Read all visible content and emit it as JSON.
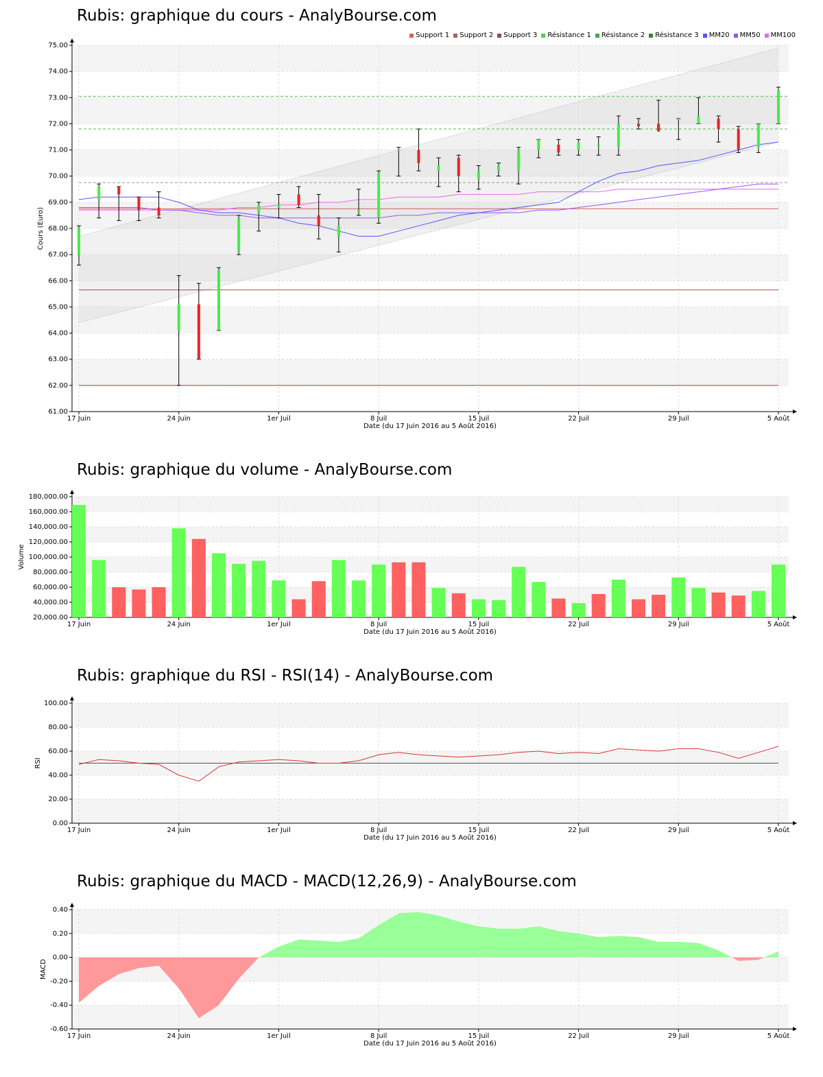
{
  "cours": {
    "title": "Rubis: graphique du cours - AnalyBourse.com",
    "legend": [
      {
        "name": "Support 1",
        "color": "#e06060"
      },
      {
        "name": "Support 2",
        "color": "#b06060"
      },
      {
        "name": "Support 3",
        "color": "#8a5050"
      },
      {
        "name": "Résistance 1",
        "color": "#55cc55"
      },
      {
        "name": "Résistance 2",
        "color": "#44aa44"
      },
      {
        "name": "Résistance 3",
        "color": "#338833"
      },
      {
        "name": "MM20",
        "color": "#5555ff"
      },
      {
        "name": "MM50",
        "color": "#9955ee"
      },
      {
        "name": "MM100",
        "color": "#ee66ee"
      }
    ]
  },
  "volume": {
    "title": "Rubis: graphique du volume - AnalyBourse.com"
  },
  "rsi": {
    "title": "Rubis: graphique du RSI - RSI(14) - AnalyBourse.com"
  },
  "macd": {
    "title": "Rubis: graphique du MACD - MACD(12,26,9) - AnalyBourse.com"
  },
  "chart_data": [
    {
      "type": "candlestick",
      "title": "Rubis: graphique du cours - AnalyBourse.com",
      "xlabel": "Date (du 17 Juin 2016 au 5 Août 2016)",
      "ylabel": "Cours (Euro)",
      "ylim": [
        61,
        75
      ],
      "yticks": [
        "61.00",
        "62.00",
        "63.00",
        "64.00",
        "65.00",
        "66.00",
        "67.00",
        "68.00",
        "69.00",
        "70.00",
        "71.00",
        "72.00",
        "73.00",
        "74.00",
        "75.00"
      ],
      "xticks": [
        {
          "label": "17 Juin",
          "index": 0
        },
        {
          "label": "24 Juin",
          "index": 5
        },
        {
          "label": "1er Juil",
          "index": 10
        },
        {
          "label": "8 Juil",
          "index": 15
        },
        {
          "label": "15 Juil",
          "index": 20
        },
        {
          "label": "22 Juil",
          "index": 25
        },
        {
          "label": "29 Juil",
          "index": 30
        },
        {
          "label": "5 Août",
          "index": 35
        }
      ],
      "candles": [
        {
          "o": 67.0,
          "h": 68.1,
          "l": 66.6,
          "c": 68.0
        },
        {
          "o": 69.1,
          "h": 69.7,
          "l": 68.4,
          "c": 69.6
        },
        {
          "o": 69.6,
          "h": 69.6,
          "l": 68.3,
          "c": 69.3
        },
        {
          "o": 69.2,
          "h": 69.2,
          "l": 68.3,
          "c": 68.7
        },
        {
          "o": 68.8,
          "h": 69.4,
          "l": 68.4,
          "c": 68.5
        },
        {
          "o": 64.1,
          "h": 66.2,
          "l": 62.0,
          "c": 65.1
        },
        {
          "o": 65.1,
          "h": 65.9,
          "l": 63.0,
          "c": 63.0
        },
        {
          "o": 64.1,
          "h": 66.5,
          "l": 64.1,
          "c": 66.4
        },
        {
          "o": 67.1,
          "h": 68.5,
          "l": 67.0,
          "c": 68.4
        },
        {
          "o": 68.6,
          "h": 69.0,
          "l": 67.9,
          "c": 68.9
        },
        {
          "o": 68.8,
          "h": 69.3,
          "l": 68.4,
          "c": 68.9
        },
        {
          "o": 69.3,
          "h": 69.6,
          "l": 68.8,
          "c": 68.9
        },
        {
          "o": 68.5,
          "h": 69.3,
          "l": 67.6,
          "c": 68.1
        },
        {
          "o": 67.7,
          "h": 68.4,
          "l": 67.1,
          "c": 68.1
        },
        {
          "o": 68.6,
          "h": 69.5,
          "l": 68.5,
          "c": 68.7
        },
        {
          "o": 68.4,
          "h": 70.2,
          "l": 68.2,
          "c": 70.1
        },
        {
          "o": 71.0,
          "h": 71.1,
          "l": 70.0,
          "c": 71.0
        },
        {
          "o": 71.0,
          "h": 71.8,
          "l": 70.2,
          "c": 70.5
        },
        {
          "o": 70.2,
          "h": 70.7,
          "l": 69.6,
          "c": 70.4
        },
        {
          "o": 70.7,
          "h": 70.8,
          "l": 69.4,
          "c": 70.0
        },
        {
          "o": 69.9,
          "h": 70.4,
          "l": 69.5,
          "c": 70.2
        },
        {
          "o": 70.2,
          "h": 70.5,
          "l": 70.0,
          "c": 70.4
        },
        {
          "o": 70.2,
          "h": 71.1,
          "l": 69.7,
          "c": 71.0
        },
        {
          "o": 71.0,
          "h": 71.4,
          "l": 70.7,
          "c": 71.4
        },
        {
          "o": 71.2,
          "h": 71.4,
          "l": 70.8,
          "c": 70.9
        },
        {
          "o": 71.0,
          "h": 71.4,
          "l": 70.8,
          "c": 71.3
        },
        {
          "o": 71.2,
          "h": 71.5,
          "l": 70.8,
          "c": 71.2
        },
        {
          "o": 71.1,
          "h": 72.3,
          "l": 70.8,
          "c": 72.0
        },
        {
          "o": 72.0,
          "h": 72.2,
          "l": 71.8,
          "c": 71.9
        },
        {
          "o": 72.0,
          "h": 72.9,
          "l": 71.8,
          "c": 71.7
        },
        {
          "o": 72.2,
          "h": 72.2,
          "l": 71.4,
          "c": 72.2
        },
        {
          "o": 72.0,
          "h": 73.0,
          "l": 72.0,
          "c": 72.3
        },
        {
          "o": 72.2,
          "h": 72.3,
          "l": 71.3,
          "c": 71.8
        },
        {
          "o": 71.8,
          "h": 71.9,
          "l": 70.9,
          "c": 71.0
        },
        {
          "o": 71.1,
          "h": 72.0,
          "l": 70.9,
          "c": 72.0
        },
        {
          "o": 72.0,
          "h": 73.4,
          "l": 72.0,
          "c": 73.3
        }
      ],
      "supports": [
        68.75,
        65.65,
        62.0
      ],
      "resistances": [
        69.75,
        71.8,
        73.05
      ],
      "trend_channel": {
        "lower": [
          64.4,
          71.3
        ],
        "upper": [
          67.7,
          74.9
        ]
      },
      "mm20": [
        69.1,
        69.2,
        69.2,
        69.2,
        69.2,
        69.0,
        68.7,
        68.6,
        68.6,
        68.5,
        68.4,
        68.2,
        68.1,
        67.9,
        67.7,
        67.7,
        67.9,
        68.1,
        68.3,
        68.5,
        68.6,
        68.7,
        68.8,
        68.9,
        69.0,
        69.4,
        69.8,
        70.1,
        70.2,
        70.4,
        70.5,
        70.6,
        70.8,
        71.0,
        71.2,
        71.3
      ],
      "mm50": [
        68.8,
        68.8,
        68.8,
        68.8,
        68.7,
        68.7,
        68.6,
        68.5,
        68.5,
        68.4,
        68.4,
        68.4,
        68.4,
        68.4,
        68.4,
        68.4,
        68.5,
        68.5,
        68.6,
        68.6,
        68.6,
        68.6,
        68.6,
        68.7,
        68.7,
        68.8,
        68.9,
        69.0,
        69.1,
        69.2,
        69.3,
        69.4,
        69.5,
        69.6,
        69.7,
        69.7
      ],
      "mm100": [
        68.7,
        68.7,
        68.7,
        68.7,
        68.7,
        68.7,
        68.7,
        68.7,
        68.8,
        68.8,
        68.9,
        68.9,
        69.0,
        69.0,
        69.1,
        69.1,
        69.2,
        69.2,
        69.2,
        69.3,
        69.3,
        69.3,
        69.3,
        69.4,
        69.4,
        69.4,
        69.4,
        69.5,
        69.5,
        69.5,
        69.5,
        69.5,
        69.5,
        69.5,
        69.5,
        69.5
      ]
    },
    {
      "type": "bar",
      "title": "Rubis: graphique du volume - AnalyBourse.com",
      "xlabel": "Date (du 17 Juin 2016 au 5 Août 2016)",
      "ylabel": "Volume",
      "ylim": [
        20000,
        180000
      ],
      "yticks": [
        "20,000.00",
        "40,000.00",
        "60,000.00",
        "80,000.00",
        "100,000.00",
        "120,000.00",
        "140,000.00",
        "160,000.00",
        "180,000.00"
      ],
      "values": [
        169000,
        96000,
        60000,
        57000,
        60000,
        138000,
        124000,
        105000,
        91000,
        95000,
        69000,
        44000,
        68000,
        96000,
        69000,
        90000,
        93000,
        93000,
        59000,
        52000,
        44000,
        43000,
        87000,
        67000,
        45000,
        39000,
        51000,
        70000,
        44000,
        50000,
        73000,
        59000,
        53000,
        49000,
        55000,
        90000
      ],
      "up": [
        1,
        1,
        0,
        0,
        0,
        1,
        0,
        1,
        1,
        1,
        1,
        0,
        0,
        1,
        1,
        1,
        0,
        0,
        1,
        0,
        1,
        1,
        1,
        1,
        0,
        1,
        0,
        1,
        0,
        0,
        1,
        1,
        0,
        0,
        1,
        1
      ]
    },
    {
      "type": "line",
      "title": "Rubis: graphique du RSI - RSI(14) - AnalyBourse.com",
      "xlabel": "Date (du 17 Juin 2016 au 5 Août 2016)",
      "ylabel": "RSI",
      "ylim": [
        0,
        100
      ],
      "yticks": [
        "0.00",
        "20.00",
        "40.00",
        "60.00",
        "80.00",
        "100.00"
      ],
      "reference": 50,
      "values": [
        49,
        53,
        52,
        50,
        49,
        40,
        35,
        47,
        51,
        52,
        53,
        52,
        50,
        50,
        52,
        57,
        59,
        57,
        56,
        55,
        56,
        57,
        59,
        60,
        58,
        59,
        58,
        62,
        61,
        60,
        62,
        62,
        59,
        54,
        59,
        64
      ]
    },
    {
      "type": "area",
      "title": "Rubis: graphique du MACD - MACD(12,26,9) - AnalyBourse.com",
      "xlabel": "Date (du 17 Juin 2016 au 5 Août 2016)",
      "ylabel": "MACD",
      "ylim": [
        -0.6,
        0.4
      ],
      "yticks": [
        "-0.60",
        "-0.40",
        "-0.20",
        "0.00",
        "0.20",
        "0.40"
      ],
      "values": [
        -0.38,
        -0.24,
        -0.14,
        -0.09,
        -0.07,
        -0.26,
        -0.51,
        -0.4,
        -0.18,
        0.0,
        0.09,
        0.15,
        0.14,
        0.13,
        0.16,
        0.27,
        0.37,
        0.38,
        0.35,
        0.3,
        0.26,
        0.24,
        0.24,
        0.26,
        0.22,
        0.2,
        0.17,
        0.18,
        0.17,
        0.13,
        0.13,
        0.12,
        0.06,
        -0.03,
        -0.02,
        0.05
      ]
    }
  ]
}
